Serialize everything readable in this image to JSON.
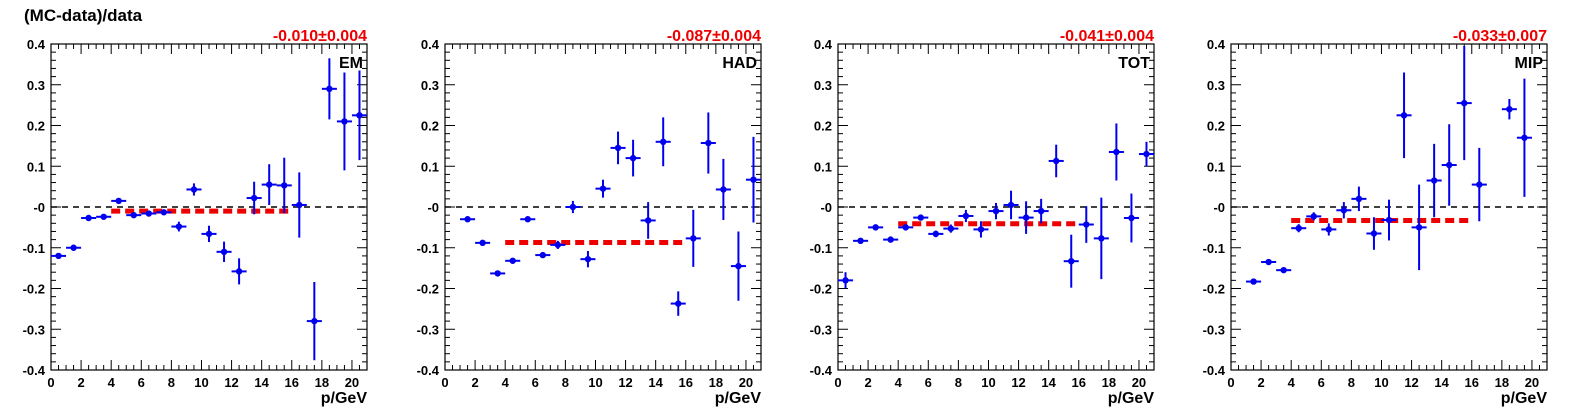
{
  "ylabel": "(MC-data)/data",
  "colors": {
    "points": "#0000ee",
    "fit": "#ee0000",
    "zero_line": "#000000",
    "fit_text": "#ee0000"
  },
  "chart_data": [
    {
      "type": "scatter",
      "panel_label": "EM",
      "fit_text": "-0.010±0.004",
      "xlabel": "p/GeV",
      "xlim": [
        0,
        21
      ],
      "ylim": [
        -0.4,
        0.4
      ],
      "xticks": [
        "0",
        "2",
        "4",
        "6",
        "8",
        "10",
        "12",
        "14",
        "16",
        "18",
        "20"
      ],
      "yticks": [
        "-0.4",
        "-0.3",
        "-0.2",
        "-0.1",
        "-0",
        "0.1",
        "0.2",
        "0.3",
        "0.4"
      ],
      "fit": {
        "value": -0.01,
        "x_range": [
          4,
          16
        ]
      },
      "points": [
        {
          "x": 0.5,
          "y": -0.12,
          "err": 0.004
        },
        {
          "x": 1.5,
          "y": -0.1,
          "err": 0.004
        },
        {
          "x": 2.5,
          "y": -0.027,
          "err": 0.004
        },
        {
          "x": 3.5,
          "y": -0.024,
          "err": 0.004
        },
        {
          "x": 4.5,
          "y": 0.015,
          "err": 0.004
        },
        {
          "x": 5.5,
          "y": -0.02,
          "err": 0.006
        },
        {
          "x": 6.5,
          "y": -0.016,
          "err": 0.006
        },
        {
          "x": 7.5,
          "y": -0.013,
          "err": 0.006
        },
        {
          "x": 8.5,
          "y": -0.048,
          "err": 0.012
        },
        {
          "x": 9.5,
          "y": 0.043,
          "err": 0.015
        },
        {
          "x": 10.5,
          "y": -0.066,
          "err": 0.02
        },
        {
          "x": 11.5,
          "y": -0.11,
          "err": 0.025
        },
        {
          "x": 12.5,
          "y": -0.158,
          "err": 0.032
        },
        {
          "x": 13.5,
          "y": 0.022,
          "err": 0.04
        },
        {
          "x": 14.5,
          "y": 0.055,
          "err": 0.05
        },
        {
          "x": 15.5,
          "y": 0.053,
          "err": 0.068
        },
        {
          "x": 16.5,
          "y": 0.005,
          "err": 0.08
        },
        {
          "x": 17.5,
          "y": -0.28,
          "err": 0.096
        },
        {
          "x": 18.5,
          "y": 0.29,
          "err": 0.075
        },
        {
          "x": 19.5,
          "y": 0.21,
          "err": 0.12
        },
        {
          "x": 20.5,
          "y": 0.225,
          "err": 0.11
        }
      ]
    },
    {
      "type": "scatter",
      "panel_label": "HAD",
      "fit_text": "-0.087±0.004",
      "xlabel": "p/GeV",
      "xlim": [
        0,
        21
      ],
      "ylim": [
        -0.4,
        0.4
      ],
      "xticks": [
        "0",
        "2",
        "4",
        "6",
        "8",
        "10",
        "12",
        "14",
        "16",
        "18",
        "20"
      ],
      "yticks": [
        "-0.4",
        "-0.3",
        "-0.2",
        "-0.1",
        "-0",
        "0.1",
        "0.2",
        "0.3",
        "0.4"
      ],
      "fit": {
        "value": -0.087,
        "x_range": [
          4,
          16
        ]
      },
      "points": [
        {
          "x": 1.5,
          "y": -0.03,
          "err": 0.004
        },
        {
          "x": 2.5,
          "y": -0.088,
          "err": 0.004
        },
        {
          "x": 3.5,
          "y": -0.163,
          "err": 0.004
        },
        {
          "x": 4.5,
          "y": -0.132,
          "err": 0.004
        },
        {
          "x": 5.5,
          "y": -0.03,
          "err": 0.005
        },
        {
          "x": 6.5,
          "y": -0.118,
          "err": 0.006
        },
        {
          "x": 7.5,
          "y": -0.093,
          "err": 0.01
        },
        {
          "x": 8.5,
          "y": 0.0,
          "err": 0.015
        },
        {
          "x": 9.5,
          "y": -0.128,
          "err": 0.02
        },
        {
          "x": 10.5,
          "y": 0.045,
          "err": 0.022
        },
        {
          "x": 11.5,
          "y": 0.145,
          "err": 0.04
        },
        {
          "x": 12.5,
          "y": 0.12,
          "err": 0.045
        },
        {
          "x": 13.5,
          "y": -0.033,
          "err": 0.045
        },
        {
          "x": 14.5,
          "y": 0.16,
          "err": 0.06
        },
        {
          "x": 15.5,
          "y": -0.237,
          "err": 0.03
        },
        {
          "x": 16.5,
          "y": -0.077,
          "err": 0.07
        },
        {
          "x": 17.5,
          "y": 0.157,
          "err": 0.075
        },
        {
          "x": 18.5,
          "y": 0.043,
          "err": 0.075
        },
        {
          "x": 19.5,
          "y": -0.145,
          "err": 0.085
        },
        {
          "x": 20.5,
          "y": 0.067,
          "err": 0.105
        }
      ]
    },
    {
      "type": "scatter",
      "panel_label": "TOT",
      "fit_text": "-0.041±0.004",
      "xlabel": "p/GeV",
      "xlim": [
        0,
        21
      ],
      "ylim": [
        -0.4,
        0.4
      ],
      "xticks": [
        "0",
        "2",
        "4",
        "6",
        "8",
        "10",
        "12",
        "14",
        "16",
        "18",
        "20"
      ],
      "yticks": [
        "-0.4",
        "-0.3",
        "-0.2",
        "-0.1",
        "-0",
        "0.1",
        "0.2",
        "0.3",
        "0.4"
      ],
      "fit": {
        "value": -0.041,
        "x_range": [
          4,
          16
        ]
      },
      "points": [
        {
          "x": 0.5,
          "y": -0.18,
          "err": 0.02
        },
        {
          "x": 1.5,
          "y": -0.083,
          "err": 0.005
        },
        {
          "x": 2.5,
          "y": -0.05,
          "err": 0.005
        },
        {
          "x": 3.5,
          "y": -0.08,
          "err": 0.005
        },
        {
          "x": 4.5,
          "y": -0.05,
          "err": 0.005
        },
        {
          "x": 5.5,
          "y": -0.026,
          "err": 0.005
        },
        {
          "x": 6.5,
          "y": -0.066,
          "err": 0.008
        },
        {
          "x": 7.5,
          "y": -0.053,
          "err": 0.01
        },
        {
          "x": 8.5,
          "y": -0.022,
          "err": 0.015
        },
        {
          "x": 9.5,
          "y": -0.055,
          "err": 0.02
        },
        {
          "x": 10.5,
          "y": -0.01,
          "err": 0.02
        },
        {
          "x": 11.5,
          "y": 0.005,
          "err": 0.035
        },
        {
          "x": 12.5,
          "y": -0.026,
          "err": 0.04
        },
        {
          "x": 13.5,
          "y": -0.01,
          "err": 0.03
        },
        {
          "x": 14.5,
          "y": 0.113,
          "err": 0.04
        },
        {
          "x": 15.5,
          "y": -0.133,
          "err": 0.065
        },
        {
          "x": 16.5,
          "y": -0.043,
          "err": 0.045
        },
        {
          "x": 17.5,
          "y": -0.077,
          "err": 0.1
        },
        {
          "x": 18.5,
          "y": 0.135,
          "err": 0.07
        },
        {
          "x": 19.5,
          "y": -0.027,
          "err": 0.06
        },
        {
          "x": 20.5,
          "y": 0.13,
          "err": 0.03
        }
      ]
    },
    {
      "type": "scatter",
      "panel_label": "MIP",
      "fit_text": "-0.033±0.007",
      "xlabel": "p/GeV",
      "xlim": [
        0,
        21
      ],
      "ylim": [
        -0.4,
        0.4
      ],
      "xticks": [
        "0",
        "2",
        "4",
        "6",
        "8",
        "10",
        "12",
        "14",
        "16",
        "18",
        "20"
      ],
      "yticks": [
        "-0.4",
        "-0.3",
        "-0.2",
        "-0.1",
        "-0",
        "0.1",
        "0.2",
        "0.3",
        "0.4"
      ],
      "fit": {
        "value": -0.033,
        "x_range": [
          4,
          16
        ]
      },
      "points": [
        {
          "x": 1.5,
          "y": -0.183,
          "err": 0.004
        },
        {
          "x": 2.5,
          "y": -0.135,
          "err": 0.005
        },
        {
          "x": 3.5,
          "y": -0.155,
          "err": 0.006
        },
        {
          "x": 4.5,
          "y": -0.052,
          "err": 0.01
        },
        {
          "x": 5.5,
          "y": -0.023,
          "err": 0.01
        },
        {
          "x": 6.5,
          "y": -0.055,
          "err": 0.015
        },
        {
          "x": 7.5,
          "y": -0.008,
          "err": 0.02
        },
        {
          "x": 8.5,
          "y": 0.02,
          "err": 0.03
        },
        {
          "x": 9.5,
          "y": -0.065,
          "err": 0.04
        },
        {
          "x": 10.5,
          "y": -0.032,
          "err": 0.05
        },
        {
          "x": 11.5,
          "y": 0.225,
          "err": 0.105
        },
        {
          "x": 12.5,
          "y": -0.05,
          "err": 0.105
        },
        {
          "x": 13.5,
          "y": 0.065,
          "err": 0.09
        },
        {
          "x": 14.5,
          "y": 0.103,
          "err": 0.1
        },
        {
          "x": 15.5,
          "y": 0.255,
          "err": 0.14
        },
        {
          "x": 16.5,
          "y": 0.055,
          "err": 0.09
        },
        {
          "x": 18.5,
          "y": 0.24,
          "err": 0.025
        },
        {
          "x": 19.5,
          "y": 0.17,
          "err": 0.145
        }
      ]
    }
  ]
}
